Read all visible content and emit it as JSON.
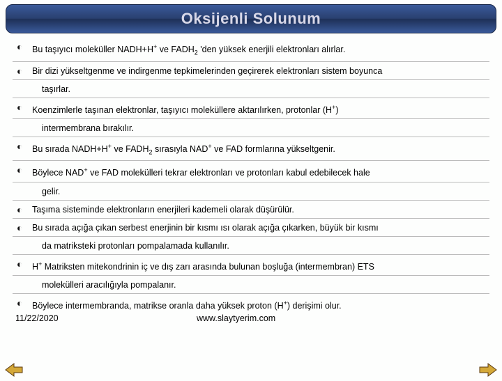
{
  "header": {
    "title": "Oksijenli Solunum",
    "banner_gradient_top": "#3a5a9a",
    "banner_gradient_mid": "#1e3058",
    "title_color": "#d8d8e8"
  },
  "bullets": [
    {
      "html": "Bu taşıyıcı moleküller NADH+H<sup>+</sup> ve FADH<sub>2</sub> 'den yüksek enerjili elektronları alırlar."
    },
    {
      "html": "Bir dizi yükseltgenme ve indirgenme tepkimelerinden geçirerek elektronları sistem boyunca"
    },
    {
      "html": "taşırlar.",
      "continuation": true
    },
    {
      "html": "Koenzimlerle taşınan elektronlar, taşıyıcı moleküllere aktarılırken, protonlar (H<sup>+</sup>)"
    },
    {
      "html": "intermembrana bırakılır.",
      "continuation": true
    },
    {
      "html": "Bu sırada NADH+H<sup>+</sup> ve FADH<sub>2</sub> sırasıyla NAD<sup>+</sup> ve FAD formlarına yükseltgenir."
    },
    {
      "html": "Böylece NAD<sup>+</sup> ve FAD molekülleri tekrar elektronları ve protonları kabul edebilecek hale"
    },
    {
      "html": "gelir.",
      "continuation": true
    },
    {
      "html": "Taşıma sisteminde elektronların enerjileri kademeli olarak düşürülür."
    },
    {
      "html": "Bu sırada açığa çıkan serbest enerjinin bir kısmı ısı olarak açığa çıkarken, büyük bir kısmı"
    },
    {
      "html": "da matriksteki protonları pompalamada kullanılır.",
      "continuation": true
    },
    {
      "html": "H<sup>+</sup> Matriksten mitekondrinin iç ve dış zarı arasında bulunan boşluğa (intermembran) ETS"
    },
    {
      "html": "molekülleri aracılığıyla pompalanır.",
      "continuation": true
    }
  ],
  "last_bullet": {
    "html": "Böylece intermembranda, matrikse oranla daha yüksek proton (H<sup>+</sup>) derişimi olur."
  },
  "footer": {
    "date": "11/22/2020",
    "url": "www.slaytyerim.com"
  },
  "nav": {
    "left_icon": "arrow-left",
    "right_icon": "arrow-right",
    "arrow_fill": "#d4a838",
    "arrow_stroke": "#5a3a10"
  },
  "style": {
    "divider_color": "#bbbbbb",
    "body_fontsize": 12.5,
    "bullet_glyph": "◐"
  }
}
